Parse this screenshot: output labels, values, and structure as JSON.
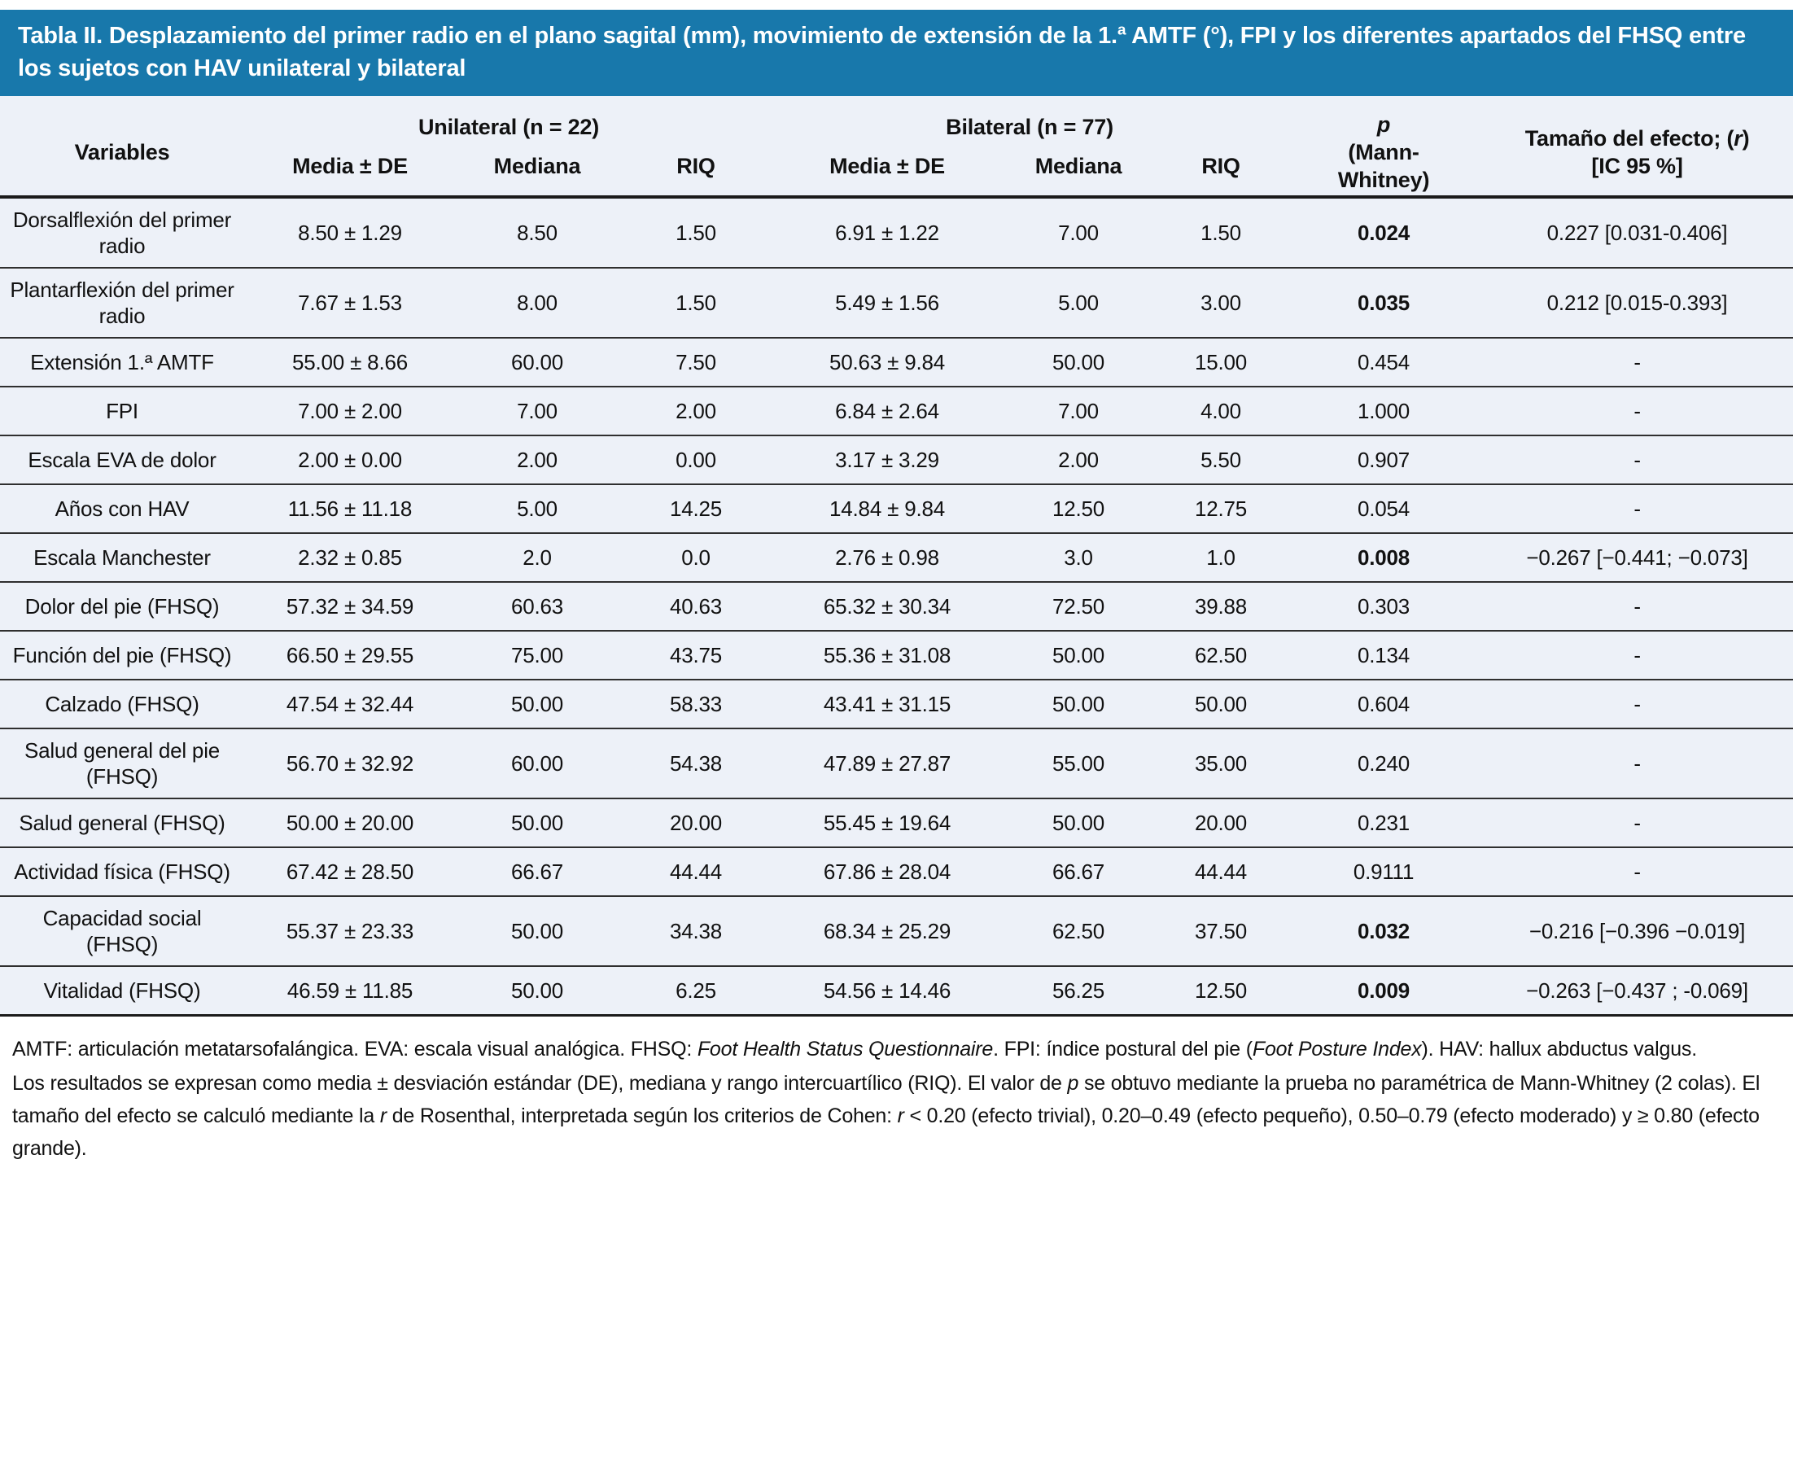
{
  "title": "Tabla II. Desplazamiento del primer radio en el plano sagital (mm), movimiento de extensión de la 1.ª AMTF (°), FPI y los diferentes apartados del FHSQ entre los sujetos con HAV unilateral y bilateral",
  "colors": {
    "accent": "#1878ab",
    "row_bg": "#edf1f8",
    "header_text": "#ffffff"
  },
  "table": {
    "header": {
      "variables": "Variables",
      "unilateral": "Unilateral (n = 22)",
      "bilateral": "Bilateral (n = 77)",
      "sub": [
        "Media ± DE",
        "Mediana",
        "RIQ",
        "Media ± DE",
        "Mediana",
        "RIQ"
      ],
      "p_label": "p",
      "p_sub": "(Mann-Whitney)",
      "effect_prefix": "Tamaño del efecto; (",
      "effect_r": "r",
      "effect_suffix": ")",
      "effect_line2": "[IC 95 %]"
    },
    "rows": [
      {
        "variable": "Dorsalflexión del primer radio",
        "unilateral": [
          "8.50 ± 1.29",
          "8.50",
          "1.50"
        ],
        "bilateral": [
          "6.91 ± 1.22",
          "7.00",
          "1.50"
        ],
        "p": "0.024",
        "p_bold": true,
        "effect": "0.227 [0.031-0.406]"
      },
      {
        "variable": "Plantarflexión del primer radio",
        "unilateral": [
          "7.67 ± 1.53",
          "8.00",
          "1.50"
        ],
        "bilateral": [
          "5.49 ± 1.56",
          "5.00",
          "3.00"
        ],
        "p": "0.035",
        "p_bold": true,
        "effect": "0.212 [0.015-0.393]"
      },
      {
        "variable": "Extensión 1.ª AMTF",
        "unilateral": [
          "55.00 ± 8.66",
          "60.00",
          "7.50"
        ],
        "bilateral": [
          "50.63 ± 9.84",
          "50.00",
          "15.00"
        ],
        "p": "0.454",
        "p_bold": false,
        "effect": "-"
      },
      {
        "variable": "FPI",
        "unilateral": [
          "7.00 ± 2.00",
          "7.00",
          "2.00"
        ],
        "bilateral": [
          "6.84 ± 2.64",
          "7.00",
          "4.00"
        ],
        "p": "1.000",
        "p_bold": false,
        "effect": "-"
      },
      {
        "variable": "Escala EVA de dolor",
        "unilateral": [
          "2.00 ± 0.00",
          "2.00",
          "0.00"
        ],
        "bilateral": [
          "3.17 ± 3.29",
          "2.00",
          "5.50"
        ],
        "p": "0.907",
        "p_bold": false,
        "effect": "-"
      },
      {
        "variable": "Años con HAV",
        "unilateral": [
          "11.56 ± 11.18",
          "5.00",
          "14.25"
        ],
        "bilateral": [
          "14.84 ± 9.84",
          "12.50",
          "12.75"
        ],
        "p": "0.054",
        "p_bold": false,
        "effect": "-"
      },
      {
        "variable": "Escala Manchester",
        "unilateral": [
          "2.32 ± 0.85",
          "2.0",
          "0.0"
        ],
        "bilateral": [
          "2.76 ± 0.98",
          "3.0",
          "1.0"
        ],
        "p": "0.008",
        "p_bold": true,
        "effect": "−0.267 [−0.441; −0.073]"
      },
      {
        "variable": "Dolor del pie (FHSQ)",
        "unilateral": [
          "57.32 ± 34.59",
          "60.63",
          "40.63"
        ],
        "bilateral": [
          "65.32 ± 30.34",
          "72.50",
          "39.88"
        ],
        "p": "0.303",
        "p_bold": false,
        "effect": "-"
      },
      {
        "variable": "Función del pie (FHSQ)",
        "unilateral": [
          "66.50 ± 29.55",
          "75.00",
          "43.75"
        ],
        "bilateral": [
          "55.36 ± 31.08",
          "50.00",
          "62.50"
        ],
        "p": "0.134",
        "p_bold": false,
        "effect": "-"
      },
      {
        "variable": "Calzado (FHSQ)",
        "unilateral": [
          "47.54 ± 32.44",
          "50.00",
          "58.33"
        ],
        "bilateral": [
          "43.41 ± 31.15",
          "50.00",
          "50.00"
        ],
        "p": "0.604",
        "p_bold": false,
        "effect": "-"
      },
      {
        "variable": "Salud general del pie (FHSQ)",
        "unilateral": [
          "56.70 ± 32.92",
          "60.00",
          "54.38"
        ],
        "bilateral": [
          "47.89 ± 27.87",
          "55.00",
          "35.00"
        ],
        "p": "0.240",
        "p_bold": false,
        "effect": "-"
      },
      {
        "variable": "Salud general (FHSQ)",
        "unilateral": [
          "50.00 ± 20.00",
          "50.00",
          "20.00"
        ],
        "bilateral": [
          "55.45 ± 19.64",
          "50.00",
          "20.00"
        ],
        "p": "0.231",
        "p_bold": false,
        "effect": "-"
      },
      {
        "variable": "Actividad física (FHSQ)",
        "unilateral": [
          "67.42 ± 28.50",
          "66.67",
          "44.44"
        ],
        "bilateral": [
          "67.86 ± 28.04",
          "66.67",
          "44.44"
        ],
        "p": "0.9111",
        "p_bold": false,
        "effect": "-"
      },
      {
        "variable": "Capacidad social (FHSQ)",
        "unilateral": [
          "55.37 ± 23.33",
          "50.00",
          "34.38"
        ],
        "bilateral": [
          "68.34 ± 25.29",
          "62.50",
          "37.50"
        ],
        "p": "0.032",
        "p_bold": true,
        "effect": "−0.216 [−0.396 −0.019]"
      },
      {
        "variable": "Vitalidad (FHSQ)",
        "unilateral": [
          "46.59 ± 11.85",
          "50.00",
          "6.25"
        ],
        "bilateral": [
          "54.56 ± 14.46",
          "56.25",
          "12.50"
        ],
        "p": "0.009",
        "p_bold": true,
        "effect": "−0.263 [−0.437 ; -0.069]"
      }
    ]
  },
  "footnotes": [
    {
      "segments": [
        {
          "t": "AMTF: articulación metatarsofalángica. EVA: escala visual analógica. FHSQ: "
        },
        {
          "t": "Foot Health Status Questionnaire",
          "i": true
        },
        {
          "t": ". FPI: índice postural del pie ("
        },
        {
          "t": "Foot Posture Index",
          "i": true
        },
        {
          "t": "). HAV: hallux abductus valgus."
        }
      ]
    },
    {
      "segments": [
        {
          "t": "Los resultados se expresan como media ± desviación estándar (DE), mediana y rango intercuartílico (RIQ). El valor de "
        },
        {
          "t": "p",
          "i": true
        },
        {
          "t": " se obtuvo mediante la prueba no paramétrica de Mann-Whitney (2 colas). El tamaño del efecto se calculó mediante la "
        },
        {
          "t": "r",
          "i": true
        },
        {
          "t": " de Rosenthal, interpretada según los criterios de Cohen: "
        },
        {
          "t": "r",
          "i": true
        },
        {
          "t": " < 0.20 (efecto trivial), 0.20–0.49 (efecto pequeño), 0.50–0.79 (efecto moderado) y ≥ 0.80 (efecto grande)."
        }
      ]
    }
  ]
}
